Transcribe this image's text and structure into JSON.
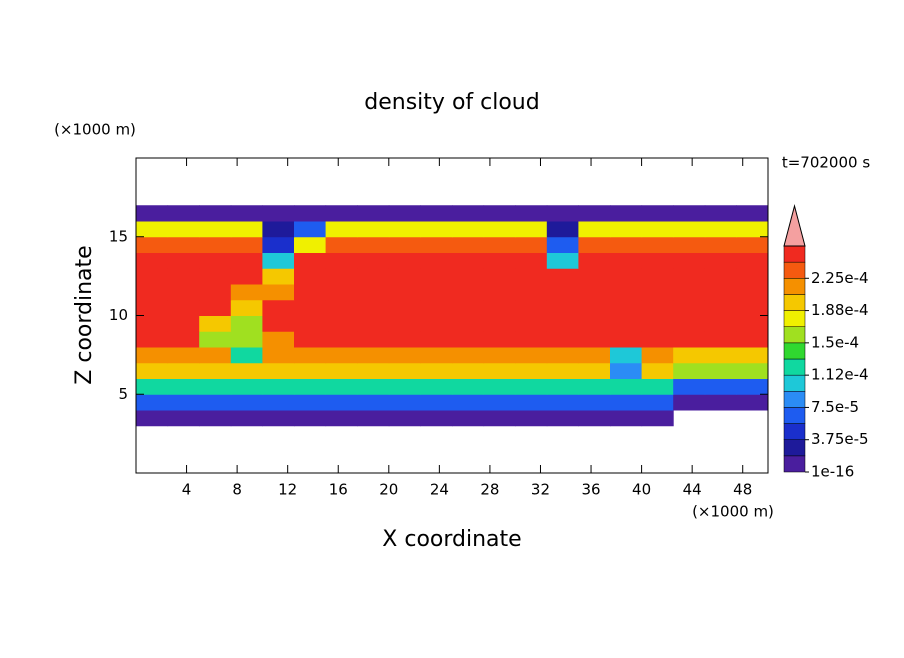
{
  "chart_data": {
    "type": "contour",
    "title": "density of cloud",
    "x_label": "X coordinate",
    "y_label": "Z coordinate",
    "x_unit": "(×1000 m)",
    "y_unit": "(×1000 m)",
    "time_label": "t=702000 s",
    "xlim": [
      0,
      50
    ],
    "ylim": [
      0,
      20
    ],
    "xticks": [
      4,
      8,
      12,
      16,
      20,
      24,
      28,
      32,
      36,
      40,
      44,
      48
    ],
    "yticks": [
      5,
      10,
      15
    ],
    "x": [
      0,
      2.5,
      5,
      7.5,
      10,
      12.5,
      15,
      17.5,
      20,
      22.5,
      25,
      27.5,
      30,
      32.5,
      35,
      37.5,
      40,
      42.5,
      45,
      47.5,
      50
    ],
    "y": [
      3,
      4,
      5,
      6,
      7,
      8,
      9,
      10,
      11,
      12,
      13,
      14,
      15,
      16,
      17
    ],
    "z": [
      [
        5e-06,
        5e-06,
        5e-06,
        5e-06,
        5e-06,
        5e-06,
        5e-06,
        5e-06,
        5e-06,
        5e-06,
        5e-06,
        5e-06,
        5e-06,
        5e-06,
        5e-06,
        5e-06,
        5e-06,
        null,
        null,
        null
      ],
      [
        6e-05,
        6e-05,
        6e-05,
        6e-05,
        6e-05,
        6e-05,
        6e-05,
        6e-05,
        6e-05,
        6e-05,
        6e-05,
        6e-05,
        6e-05,
        6e-05,
        6e-05,
        6e-05,
        6e-05,
        5e-06,
        5e-06,
        5e-06
      ],
      [
        0.00013,
        0.00013,
        0.00013,
        0.00013,
        0.00013,
        0.00013,
        0.00013,
        0.00013,
        0.00013,
        0.00013,
        0.00013,
        0.00013,
        0.00013,
        0.00013,
        0.00013,
        0.00012,
        0.00012,
        7e-05,
        7e-05,
        7e-05
      ],
      [
        0.00019,
        0.00019,
        0.00019,
        0.00019,
        0.00019,
        0.00019,
        0.00019,
        0.00019,
        0.00019,
        0.00019,
        0.00019,
        0.00019,
        0.00019,
        0.00019,
        0.00019,
        8e-05,
        0.00019,
        0.00015,
        0.00015,
        0.00015
      ],
      [
        0.00022,
        0.00022,
        0.00022,
        0.00012,
        0.00022,
        0.00022,
        0.00022,
        0.00022,
        0.00022,
        0.00022,
        0.00022,
        0.00022,
        0.00022,
        0.00022,
        0.00022,
        0.00011,
        0.00022,
        0.0002,
        0.0002,
        0.0002
      ],
      [
        0.00025,
        0.00025,
        0.00016,
        0.00016,
        0.00021,
        0.00025,
        0.00025,
        0.00025,
        0.00025,
        0.00025,
        0.00025,
        0.00025,
        0.00025,
        0.00025,
        0.00025,
        0.00025,
        0.00025,
        0.00025,
        0.00025,
        0.00025
      ],
      [
        0.00025,
        0.00025,
        0.0002,
        0.00015,
        0.00025,
        0.00025,
        0.00025,
        0.00025,
        0.00025,
        0.00025,
        0.00025,
        0.00025,
        0.00025,
        0.00025,
        0.00025,
        0.00025,
        0.00025,
        0.00025,
        0.00025,
        0.00025
      ],
      [
        0.00025,
        0.00025,
        0.00025,
        0.0002,
        0.00025,
        0.00025,
        0.00025,
        0.00025,
        0.00025,
        0.00025,
        0.00025,
        0.00025,
        0.00025,
        0.00025,
        0.00025,
        0.00025,
        0.00025,
        0.00025,
        0.00025,
        0.00025
      ],
      [
        0.00025,
        0.00025,
        0.00025,
        0.00022,
        0.00022,
        0.00025,
        0.00025,
        0.00025,
        0.00025,
        0.00025,
        0.00025,
        0.00025,
        0.00025,
        0.00025,
        0.00025,
        0.00025,
        0.00025,
        0.00025,
        0.00025,
        0.00025
      ],
      [
        0.00025,
        0.00025,
        0.00025,
        0.00025,
        0.00019,
        0.00025,
        0.00025,
        0.00025,
        0.00025,
        0.00025,
        0.00025,
        0.00025,
        0.00025,
        0.00025,
        0.00025,
        0.00025,
        0.00025,
        0.00025,
        0.00025,
        0.00025
      ],
      [
        0.00025,
        0.00025,
        0.00025,
        0.00025,
        0.0001,
        0.00025,
        0.00025,
        0.00025,
        0.00025,
        0.00025,
        0.00025,
        0.00025,
        0.00025,
        0.00011,
        0.00025,
        0.00025,
        0.00025,
        0.00025,
        0.00025,
        0.00025
      ],
      [
        0.00024,
        0.00024,
        0.00024,
        0.00024,
        5e-05,
        0.00018,
        0.00024,
        0.00024,
        0.00024,
        0.00024,
        0.00024,
        0.00024,
        0.00024,
        6e-05,
        0.00024,
        0.00024,
        0.00024,
        0.00024,
        0.00024,
        0.00024
      ],
      [
        0.00017,
        0.00017,
        0.00017,
        0.00017,
        3e-05,
        6e-05,
        0.00017,
        0.00017,
        0.00017,
        0.00017,
        0.00017,
        0.00017,
        0.00017,
        3e-05,
        0.00017,
        0.00017,
        0.00017,
        0.00017,
        0.00017,
        0.00017
      ],
      [
        5e-06,
        5e-06,
        5e-06,
        5e-06,
        5e-06,
        5e-06,
        5e-06,
        5e-06,
        5e-06,
        5e-06,
        5e-06,
        5e-06,
        5e-06,
        5e-06,
        5e-06,
        5e-06,
        5e-06,
        5e-06,
        5e-06,
        5e-06
      ]
    ],
    "clim": [
      1e-16,
      0.0002625
    ],
    "levels": [
      1e-16,
      1.875e-05,
      3.75e-05,
      5.625e-05,
      7.5e-05,
      9.375e-05,
      0.0001125,
      0.00013125,
      0.00015,
      0.00016875,
      0.0001875,
      0.00020625,
      0.000225,
      0.00024375
    ],
    "colors": [
      "#4a1e9e",
      "#1e1a9a",
      "#1a2fcc",
      "#1e5cf0",
      "#2b8cf5",
      "#1ec8d8",
      "#10d8a0",
      "#30d830",
      "#a0e020",
      "#f0f000",
      "#f5c800",
      "#f59000",
      "#f55a10",
      "#f02a20"
    ],
    "extend_color": "#f4a0a0",
    "cticks": [
      {
        "value": 1e-16,
        "label": "1e-16"
      },
      {
        "value": 3.75e-05,
        "label": "3.75e-5"
      },
      {
        "value": 7.5e-05,
        "label": "7.5e-5"
      },
      {
        "value": 0.0001125,
        "label": "1.12e-4"
      },
      {
        "value": 0.00015,
        "label": "1.5e-4"
      },
      {
        "value": 0.0001875,
        "label": "1.88e-4"
      },
      {
        "value": 0.000225,
        "label": "2.25e-4"
      }
    ]
  }
}
